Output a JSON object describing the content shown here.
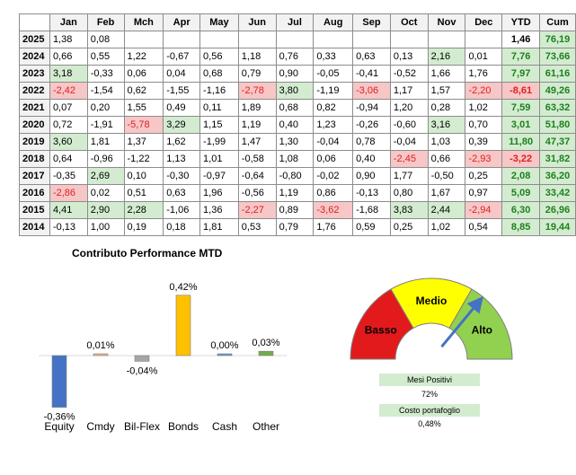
{
  "table": {
    "columns": [
      "",
      "Jan",
      "Feb",
      "Mch",
      "Apr",
      "May",
      "Jun",
      "Jul",
      "Aug",
      "Sep",
      "Oct",
      "Nov",
      "Dec",
      "YTD",
      "Cum"
    ],
    "rows": [
      {
        "year": "2025",
        "months": [
          "1,38",
          "0,08",
          "",
          "",
          "",
          "",
          "",
          "",
          "",
          "",
          "",
          ""
        ],
        "ytd": "1,46",
        "cum": "76,19"
      },
      {
        "year": "2024",
        "months": [
          "0,66",
          "0,55",
          "1,22",
          "-0,67",
          "0,56",
          "1,18",
          "0,76",
          "0,33",
          "0,63",
          "0,13",
          "2,16",
          "0,01"
        ],
        "ytd": "7,76",
        "cum": "73,66"
      },
      {
        "year": "2023",
        "months": [
          "3,18",
          "-0,33",
          "0,06",
          "0,04",
          "0,68",
          "0,79",
          "0,90",
          "-0,05",
          "-0,41",
          "-0,52",
          "1,66",
          "1,76"
        ],
        "ytd": "7,97",
        "cum": "61,16"
      },
      {
        "year": "2022",
        "months": [
          "-2,42",
          "-1,54",
          "0,62",
          "-1,55",
          "-1,16",
          "-2,78",
          "3,80",
          "-1,19",
          "-3,06",
          "1,17",
          "1,57",
          "-2,20"
        ],
        "ytd": "-8,61",
        "cum": "49,26"
      },
      {
        "year": "2021",
        "months": [
          "0,07",
          "0,20",
          "1,55",
          "0,49",
          "0,11",
          "1,89",
          "0,68",
          "0,82",
          "-0,94",
          "1,20",
          "0,28",
          "1,02"
        ],
        "ytd": "7,59",
        "cum": "63,32"
      },
      {
        "year": "2020",
        "months": [
          "0,72",
          "-1,91",
          "-5,78",
          "3,29",
          "1,15",
          "1,19",
          "0,40",
          "1,23",
          "-0,26",
          "-0,60",
          "3,16",
          "0,70"
        ],
        "ytd": "3,01",
        "cum": "51,80"
      },
      {
        "year": "2019",
        "months": [
          "3,60",
          "1,81",
          "1,37",
          "1,62",
          "-1,99",
          "1,47",
          "1,30",
          "-0,04",
          "0,78",
          "-0,04",
          "1,03",
          "0,39"
        ],
        "ytd": "11,80",
        "cum": "47,37"
      },
      {
        "year": "2018",
        "months": [
          "0,64",
          "-0,96",
          "-1,22",
          "1,13",
          "1,01",
          "-0,58",
          "1,08",
          "0,06",
          "0,40",
          "-2,45",
          "0,66",
          "-2,93"
        ],
        "ytd": "-3,22",
        "cum": "31,82"
      },
      {
        "year": "2017",
        "months": [
          "-0,35",
          "2,69",
          "0,10",
          "-0,30",
          "-0,97",
          "-0,64",
          "-0,80",
          "-0,02",
          "0,90",
          "1,77",
          "-0,50",
          "0,25"
        ],
        "ytd": "2,08",
        "cum": "36,20"
      },
      {
        "year": "2016",
        "months": [
          "-2,86",
          "0,02",
          "0,51",
          "0,63",
          "1,96",
          "-0,56",
          "1,19",
          "0,86",
          "-0,13",
          "0,80",
          "1,67",
          "0,97"
        ],
        "ytd": "5,09",
        "cum": "33,42"
      },
      {
        "year": "2015",
        "months": [
          "4,41",
          "2,90",
          "2,28",
          "-1,06",
          "1,36",
          "-2,27",
          "0,89",
          "-3,62",
          "-1,68",
          "3,83",
          "2,44",
          "-2,94"
        ],
        "ytd": "6,30",
        "cum": "26,96"
      },
      {
        "year": "2014",
        "months": [
          "-0,13",
          "1,00",
          "0,19",
          "0,18",
          "1,81",
          "0,53",
          "0,79",
          "1,76",
          "0,59",
          "0,25",
          "1,02",
          "0,54"
        ],
        "ytd": "8,85",
        "cum": "19,44"
      }
    ],
    "highlight_positive": [
      [
        1,
        10
      ],
      [
        2,
        0
      ],
      [
        3,
        6
      ],
      [
        5,
        3
      ],
      [
        5,
        10
      ],
      [
        6,
        0
      ],
      [
        8,
        1
      ],
      [
        10,
        0
      ],
      [
        10,
        1
      ],
      [
        10,
        2
      ],
      [
        10,
        9
      ],
      [
        10,
        10
      ]
    ],
    "highlight_negative": [
      [
        3,
        0
      ],
      [
        3,
        5
      ],
      [
        3,
        8
      ],
      [
        3,
        11
      ],
      [
        5,
        2
      ],
      [
        7,
        9
      ],
      [
        7,
        11
      ],
      [
        9,
        0
      ],
      [
        10,
        5
      ],
      [
        10,
        7
      ],
      [
        10,
        11
      ]
    ],
    "colors": {
      "positive_bg": "#d3ecd0",
      "negative_bg": "#f7c6c6",
      "negative_text": "#e02020",
      "positive_text": "#1e7f1e"
    }
  },
  "chart_data": {
    "type": "bar",
    "title": "Contributo Performance MTD",
    "categories": [
      "Equity",
      "Cmdy",
      "Bil-Flex",
      "Bonds",
      "Cash",
      "Other"
    ],
    "values": [
      -0.36,
      0.01,
      -0.04,
      0.42,
      0.0,
      0.03
    ],
    "value_labels": [
      "-0,36%",
      "0,01%",
      "-0,04%",
      "0,42%",
      "0,00%",
      "0,03%"
    ],
    "colors": [
      "#4472c4",
      "#f4b183",
      "#a5a5a5",
      "#ffc000",
      "#5b9bd5",
      "#70ad47"
    ],
    "xlabel": "",
    "ylabel": "",
    "ylim": [
      -0.36,
      0.42
    ],
    "grid": false
  },
  "gauge": {
    "segments": [
      {
        "label": "Basso",
        "color": "#e31a1c"
      },
      {
        "label": "Medio",
        "color": "#ffff00"
      },
      {
        "label": "Alto",
        "color": "#92d050"
      }
    ],
    "needle_value": 0.72,
    "needle_color": "#4472c4",
    "stats": [
      {
        "label": "Mesi Positivi",
        "value": "72%"
      },
      {
        "label": "Costo portafoglio",
        "value": "0,48%"
      }
    ]
  }
}
